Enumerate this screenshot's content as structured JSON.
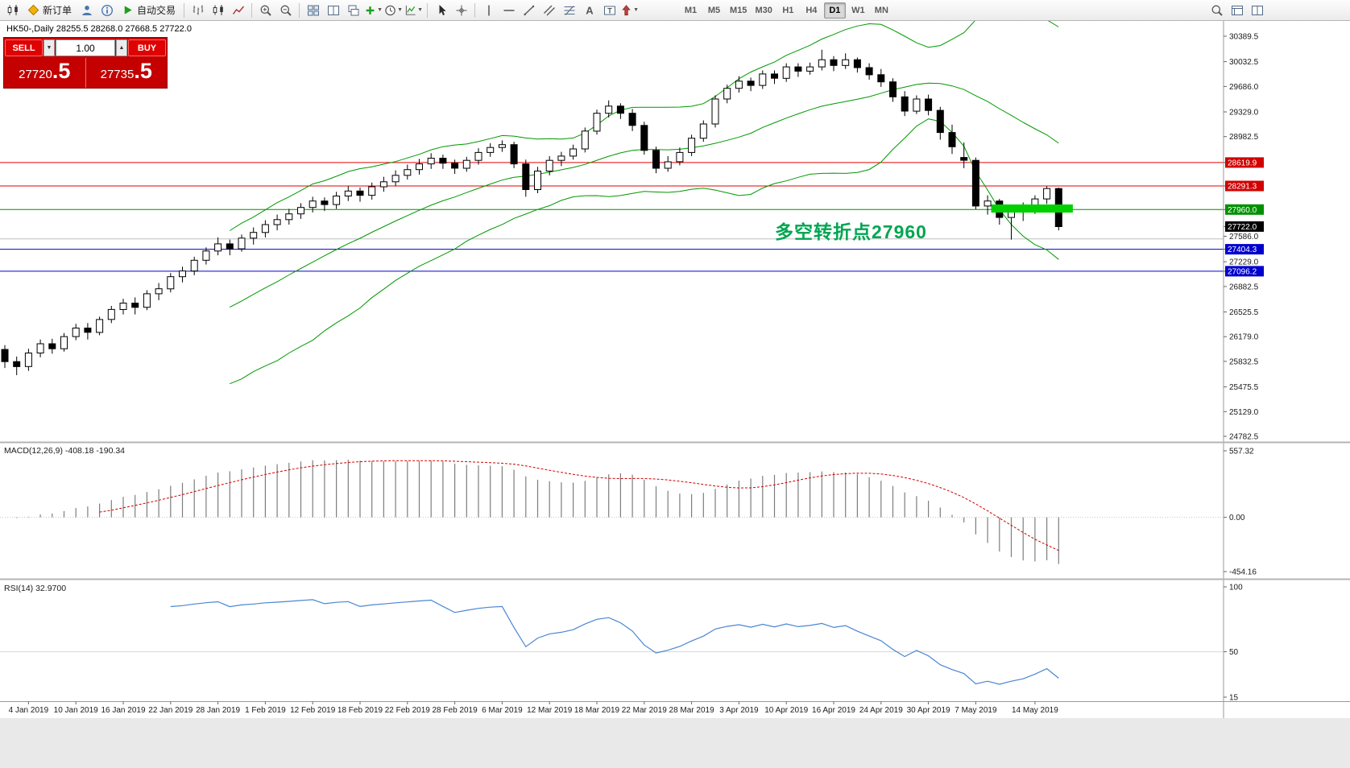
{
  "toolbar": {
    "new_order_label": "新订单",
    "autotrade_label": "自动交易",
    "timeframes": [
      "M1",
      "M5",
      "M15",
      "M30",
      "H1",
      "H4",
      "D1",
      "W1",
      "MN"
    ],
    "active_timeframe": "D1",
    "items": [
      {
        "t": "icon",
        "name": "charts-menu-icon",
        "svg": "candles"
      },
      {
        "t": "button",
        "name": "new-order-button",
        "svg": "diamond",
        "label_key": "new_order_label"
      },
      {
        "t": "icon",
        "name": "profile-icon",
        "svg": "person"
      },
      {
        "t": "icon",
        "name": "info-icon",
        "svg": "info"
      },
      {
        "t": "button",
        "name": "autotrade-button",
        "svg": "play",
        "label_key": "autotrade_label"
      },
      {
        "t": "sep"
      },
      {
        "t": "icon",
        "name": "bar-chart-icon",
        "svg": "bars"
      },
      {
        "t": "icon",
        "name": "candlestick-chart-icon",
        "svg": "candles"
      },
      {
        "t": "icon",
        "name": "line-chart-icon",
        "svg": "linechart"
      },
      {
        "t": "sep"
      },
      {
        "t": "icon",
        "name": "zoom-in-icon",
        "svg": "magplus"
      },
      {
        "t": "icon",
        "name": "zoom-out-icon",
        "svg": "magminus"
      },
      {
        "t": "sep"
      },
      {
        "t": "icon",
        "name": "tile-windows-icon",
        "svg": "grid"
      },
      {
        "t": "icon",
        "name": "arrange-windows-icon",
        "svg": "arrange"
      },
      {
        "t": "icon",
        "name": "cascade-windows-icon",
        "svg": "cascade"
      },
      {
        "t": "icon",
        "name": "new-chart-icon",
        "svg": "plus",
        "dd": true
      },
      {
        "t": "icon",
        "name": "periods-icon",
        "svg": "clock",
        "dd": true
      },
      {
        "t": "icon",
        "name": "indicators-icon",
        "svg": "indicator",
        "dd": true
      },
      {
        "t": "sep"
      },
      {
        "t": "icon",
        "name": "cursor-icon",
        "svg": "cursor"
      },
      {
        "t": "icon",
        "name": "crosshair-icon",
        "svg": "crosshair"
      },
      {
        "t": "sep"
      },
      {
        "t": "icon",
        "name": "vertical-line-icon",
        "svg": "vline"
      },
      {
        "t": "icon",
        "name": "horizontal-line-icon",
        "svg": "hline"
      },
      {
        "t": "icon",
        "name": "trendline-icon",
        "svg": "tline"
      },
      {
        "t": "icon",
        "name": "equidistant-channel-icon",
        "svg": "channel"
      },
      {
        "t": "icon",
        "name": "fibonacci-icon",
        "svg": "fibo"
      },
      {
        "t": "icon",
        "name": "text-icon",
        "svg": "textA"
      },
      {
        "t": "icon",
        "name": "label-icon",
        "svg": "labelT"
      },
      {
        "t": "icon",
        "name": "shapes-icon",
        "svg": "arrowup",
        "dd": true
      },
      {
        "t": "gap",
        "w": 50
      },
      {
        "t": "tfgroup"
      },
      {
        "t": "spacer"
      },
      {
        "t": "icon",
        "name": "search-icon",
        "svg": "mag"
      },
      {
        "t": "icon",
        "name": "data-window-icon",
        "svg": "winlist"
      },
      {
        "t": "icon",
        "name": "fullscreen-icon",
        "svg": "arrange"
      },
      {
        "t": "gap",
        "w": 100
      }
    ]
  },
  "symbol_title": "HK50-,Daily  28255.5 28268.0 27668.5 27722.0",
  "trade_panel": {
    "sell_label": "SELL",
    "buy_label": "BUY",
    "volume": "1.00",
    "order_dropdown_glyph": "▼",
    "volume_stepper_glyph": "▲",
    "sell_price_int": "27720",
    "sell_price_frac": ".5",
    "buy_price_int": "27735",
    "buy_price_frac": ".5"
  },
  "annotation": {
    "text": "多空转折点27960",
    "color": "#00a651"
  },
  "indicators": {
    "macd_label": "MACD(12,26,9) -408.18 -190.34",
    "rsi_label": "RSI(14) 32.9700",
    "macd_axis": [
      "557.32",
      "0.00",
      "-454.16"
    ],
    "rsi_axis": [
      "100",
      "50",
      "15"
    ]
  },
  "price_axis": [
    {
      "label": "30389.5"
    },
    {
      "label": "30032.5"
    },
    {
      "label": "29686.0"
    },
    {
      "label": "29329.0"
    },
    {
      "label": "28982.5"
    },
    {
      "label": "28619.9",
      "bg": "#d20000"
    },
    {
      "label": "28291.3",
      "bg": "#d20000"
    },
    {
      "label": "27960.0",
      "bg": "#009000"
    },
    {
      "label": "27722.0",
      "bg": "#000000"
    },
    {
      "label": "27586.0"
    },
    {
      "label": "27404.3",
      "bg": "#0000cc"
    },
    {
      "label": "27229.0"
    },
    {
      "label": "27096.2",
      "bg": "#0000cc"
    },
    {
      "label": "26882.5"
    },
    {
      "label": "26525.5"
    },
    {
      "label": "26179.0"
    },
    {
      "label": "25832.5"
    },
    {
      "label": "25475.5"
    },
    {
      "label": "25129.0"
    },
    {
      "label": "24782.5"
    }
  ],
  "hlines": [
    {
      "price": 28619.9,
      "color": "#e00000"
    },
    {
      "price": 28291.3,
      "color": "#e00000"
    },
    {
      "price": 27960.0,
      "color": "#009000"
    },
    {
      "price": 27404.3,
      "color": "#0000cc"
    },
    {
      "price": 27096.2,
      "color": "#0000cc"
    },
    {
      "price": 27550.0,
      "color": "#bdbdbd"
    }
  ],
  "highlight_rect": {
    "from_index": 83.3,
    "to_index": 90.2,
    "price_top": 28032,
    "price_bottom": 27918,
    "color": "#00cf00"
  },
  "chart_data": {
    "type": "candlestick",
    "symbol": "HK50-",
    "period": "Daily",
    "last_ohlc": {
      "open": 28255.5,
      "high": 28268.0,
      "low": 27668.5,
      "close": 27722.0
    },
    "y_axis_range": [
      24782.5,
      30389.5
    ],
    "candles": [
      [
        26000,
        26060,
        25740,
        25830
      ],
      [
        25830,
        25900,
        25640,
        25760
      ],
      [
        25760,
        26010,
        25700,
        25950
      ],
      [
        25950,
        26140,
        25890,
        26080
      ],
      [
        26080,
        26150,
        25940,
        26010
      ],
      [
        26010,
        26230,
        25970,
        26180
      ],
      [
        26180,
        26360,
        26130,
        26300
      ],
      [
        26300,
        26370,
        26140,
        26240
      ],
      [
        26240,
        26460,
        26200,
        26420
      ],
      [
        26420,
        26610,
        26370,
        26560
      ],
      [
        26560,
        26710,
        26490,
        26650
      ],
      [
        26650,
        26730,
        26490,
        26590
      ],
      [
        26590,
        26830,
        26550,
        26780
      ],
      [
        26780,
        26930,
        26690,
        26850
      ],
      [
        26850,
        27070,
        26800,
        27020
      ],
      [
        27020,
        27160,
        26940,
        27100
      ],
      [
        27100,
        27300,
        27040,
        27250
      ],
      [
        27250,
        27430,
        27190,
        27380
      ],
      [
        27380,
        27570,
        27320,
        27480
      ],
      [
        27480,
        27540,
        27320,
        27410
      ],
      [
        27410,
        27610,
        27370,
        27560
      ],
      [
        27560,
        27710,
        27470,
        27640
      ],
      [
        27640,
        27810,
        27570,
        27750
      ],
      [
        27750,
        27890,
        27670,
        27820
      ],
      [
        27820,
        27970,
        27750,
        27900
      ],
      [
        27900,
        28050,
        27830,
        27990
      ],
      [
        27990,
        28140,
        27920,
        28080
      ],
      [
        28080,
        28130,
        27940,
        28030
      ],
      [
        28030,
        28210,
        27970,
        28150
      ],
      [
        28150,
        28290,
        28080,
        28220
      ],
      [
        28220,
        28270,
        28070,
        28160
      ],
      [
        28160,
        28340,
        28100,
        28280
      ],
      [
        28280,
        28420,
        28210,
        28350
      ],
      [
        28350,
        28510,
        28290,
        28440
      ],
      [
        28440,
        28590,
        28380,
        28520
      ],
      [
        28520,
        28670,
        28450,
        28600
      ],
      [
        28600,
        28750,
        28530,
        28680
      ],
      [
        28680,
        28730,
        28530,
        28610
      ],
      [
        28610,
        28660,
        28460,
        28540
      ],
      [
        28540,
        28700,
        28490,
        28650
      ],
      [
        28650,
        28820,
        28590,
        28760
      ],
      [
        28760,
        28890,
        28700,
        28830
      ],
      [
        28830,
        28930,
        28770,
        28870
      ],
      [
        28870,
        28910,
        28540,
        28600
      ],
      [
        28600,
        28660,
        28140,
        28240
      ],
      [
        28240,
        28560,
        28190,
        28500
      ],
      [
        28500,
        28710,
        28440,
        28650
      ],
      [
        28650,
        28770,
        28570,
        28710
      ],
      [
        28710,
        28870,
        28660,
        28810
      ],
      [
        28810,
        29110,
        28760,
        29060
      ],
      [
        29060,
        29360,
        29010,
        29310
      ],
      [
        29310,
        29490,
        29250,
        29410
      ],
      [
        29410,
        29450,
        29230,
        29310
      ],
      [
        29310,
        29370,
        29060,
        29140
      ],
      [
        29140,
        29190,
        28730,
        28790
      ],
      [
        28790,
        28840,
        28470,
        28540
      ],
      [
        28540,
        28710,
        28490,
        28630
      ],
      [
        28630,
        28830,
        28580,
        28760
      ],
      [
        28760,
        29010,
        28710,
        28960
      ],
      [
        28960,
        29210,
        28910,
        29160
      ],
      [
        29160,
        29560,
        29110,
        29510
      ],
      [
        29510,
        29710,
        29450,
        29660
      ],
      [
        29660,
        29830,
        29600,
        29760
      ],
      [
        29760,
        29810,
        29620,
        29700
      ],
      [
        29700,
        29910,
        29650,
        29860
      ],
      [
        29860,
        29910,
        29720,
        29800
      ],
      [
        29800,
        30010,
        29750,
        29960
      ],
      [
        29960,
        30010,
        29820,
        29900
      ],
      [
        29900,
        30020,
        29850,
        29960
      ],
      [
        29960,
        30200,
        29910,
        30060
      ],
      [
        30060,
        30110,
        29900,
        29980
      ],
      [
        29980,
        30150,
        29930,
        30060
      ],
      [
        30060,
        30090,
        29880,
        29950
      ],
      [
        29950,
        30010,
        29780,
        29850
      ],
      [
        29850,
        29930,
        29680,
        29750
      ],
      [
        29750,
        29800,
        29470,
        29540
      ],
      [
        29540,
        29620,
        29270,
        29340
      ],
      [
        29340,
        29560,
        29300,
        29510
      ],
      [
        29510,
        29570,
        29280,
        29350
      ],
      [
        29350,
        29400,
        28940,
        29040
      ],
      [
        29040,
        29150,
        28740,
        28840
      ],
      [
        28690,
        28900,
        28540,
        28650
      ],
      [
        28650,
        28690,
        27965,
        28010
      ],
      [
        28010,
        28160,
        27890,
        28080
      ],
      [
        28080,
        28110,
        27750,
        27850
      ],
      [
        27850,
        27990,
        27540,
        27930
      ],
      [
        27930,
        28060,
        27800,
        27990
      ],
      [
        27990,
        28160,
        27900,
        28110
      ],
      [
        28110,
        28285,
        28040,
        28255
      ],
      [
        28255.5,
        28268,
        27668.5,
        27722
      ]
    ],
    "date_labels": [
      [
        "4 Jan 2019",
        2
      ],
      [
        "10 Jan 2019",
        6
      ],
      [
        "16 Jan 2019",
        10
      ],
      [
        "22 Jan 2019",
        14
      ],
      [
        "28 Jan 2019",
        18
      ],
      [
        "1 Feb 2019",
        22
      ],
      [
        "12 Feb 2019",
        26
      ],
      [
        "18 Feb 2019",
        30
      ],
      [
        "22 Feb 2019",
        34
      ],
      [
        "28 Feb 2019",
        38
      ],
      [
        "6 Mar 2019",
        42
      ],
      [
        "12 Mar 2019",
        46
      ],
      [
        "18 Mar 2019",
        50
      ],
      [
        "22 Mar 2019",
        54
      ],
      [
        "28 Mar 2019",
        58
      ],
      [
        "3 Apr 2019",
        62
      ],
      [
        "10 Apr 2019",
        66
      ],
      [
        "16 Apr 2019",
        70
      ],
      [
        "24 Apr 2019",
        74
      ],
      [
        "30 Apr 2019",
        78
      ],
      [
        "7 May 2019",
        82
      ],
      [
        "14 May 2019",
        87
      ]
    ],
    "overlays": {
      "bollinger": {
        "period": 20,
        "deviation": 2,
        "color": "#009800"
      }
    },
    "macd": {
      "fast": 12,
      "slow": 26,
      "signal": 9,
      "hist_color": "#7d7d7d",
      "signal_color": "#d00000"
    },
    "rsi": {
      "period": 14,
      "color": "#4a86d2"
    }
  }
}
